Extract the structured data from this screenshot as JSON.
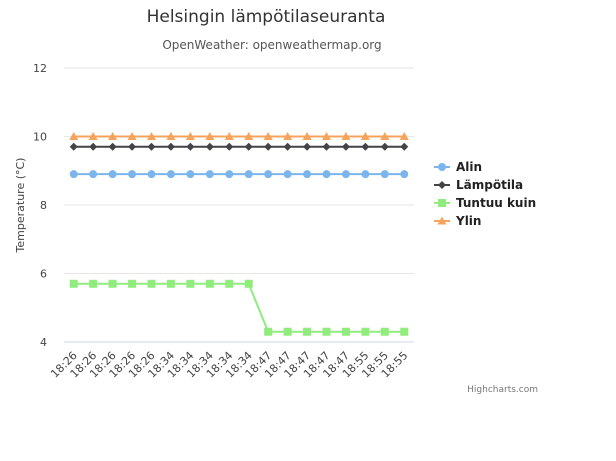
{
  "chart_data": {
    "type": "line",
    "title": "Helsingin lämpötilaseuranta",
    "subtitle": "OpenWeather: openweathermap.org",
    "ylabel": "Temperature (°C)",
    "xlabel": "",
    "ylim": [
      4,
      12
    ],
    "yticks": [
      4,
      6,
      8,
      10,
      12
    ],
    "grid": true,
    "legend_position": "right",
    "categories": [
      "18:26",
      "18:26",
      "18:26",
      "18:26",
      "18:26",
      "18:34",
      "18:34",
      "18:34",
      "18:34",
      "18:34",
      "18:47",
      "18:47",
      "18:47",
      "18:47",
      "18:47",
      "18:55",
      "18:55",
      "18:55"
    ],
    "series": [
      {
        "name": "Alin",
        "color": "#7cb5ec",
        "marker": "circle",
        "values": [
          8.9,
          8.9,
          8.9,
          8.9,
          8.9,
          8.9,
          8.9,
          8.9,
          8.9,
          8.9,
          8.9,
          8.9,
          8.9,
          8.9,
          8.9,
          8.9,
          8.9,
          8.9
        ]
      },
      {
        "name": "Lämpötila",
        "color": "#434348",
        "marker": "diamond",
        "values": [
          9.7,
          9.7,
          9.7,
          9.7,
          9.7,
          9.7,
          9.7,
          9.7,
          9.7,
          9.7,
          9.7,
          9.7,
          9.7,
          9.7,
          9.7,
          9.7,
          9.7,
          9.7
        ]
      },
      {
        "name": "Tuntuu kuin",
        "color": "#90ed7d",
        "marker": "square",
        "values": [
          5.7,
          5.7,
          5.7,
          5.7,
          5.7,
          5.7,
          5.7,
          5.7,
          5.7,
          5.7,
          4.3,
          4.3,
          4.3,
          4.3,
          4.3,
          4.3,
          4.3,
          4.3
        ]
      },
      {
        "name": "Ylin",
        "color": "#f7a35c",
        "marker": "triangle",
        "values": [
          10,
          10,
          10,
          10,
          10,
          10,
          10,
          10,
          10,
          10,
          10,
          10,
          10,
          10,
          10,
          10,
          10,
          10
        ]
      }
    ]
  },
  "credits": "Highcharts.com"
}
